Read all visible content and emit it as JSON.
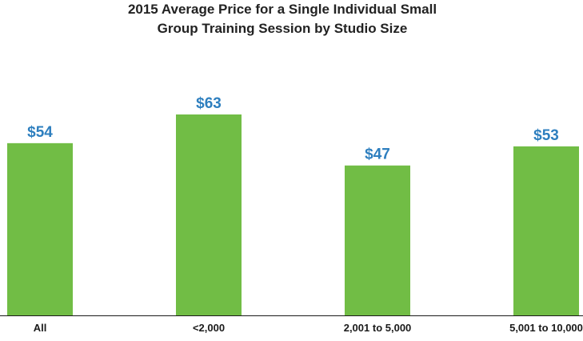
{
  "chart_data": {
    "type": "bar",
    "title_lines": [
      "2015 Average Price for a Single Individual Small",
      "Group Training Session by Studio Size"
    ],
    "categories": [
      "All",
      "<2,000",
      "2,001 to 5,000",
      "5,001 to 10,000"
    ],
    "values": [
      54,
      63,
      47,
      53
    ],
    "value_labels": [
      "$54",
      "$63",
      "$47",
      "$53"
    ],
    "xlabel": "",
    "ylabel": "",
    "ylim": [
      0,
      63
    ],
    "grid": false,
    "legend": "none",
    "colors": {
      "bar": "#71bd45",
      "value_label": "#2e7fbf",
      "axis": "#1a1a1a"
    }
  }
}
